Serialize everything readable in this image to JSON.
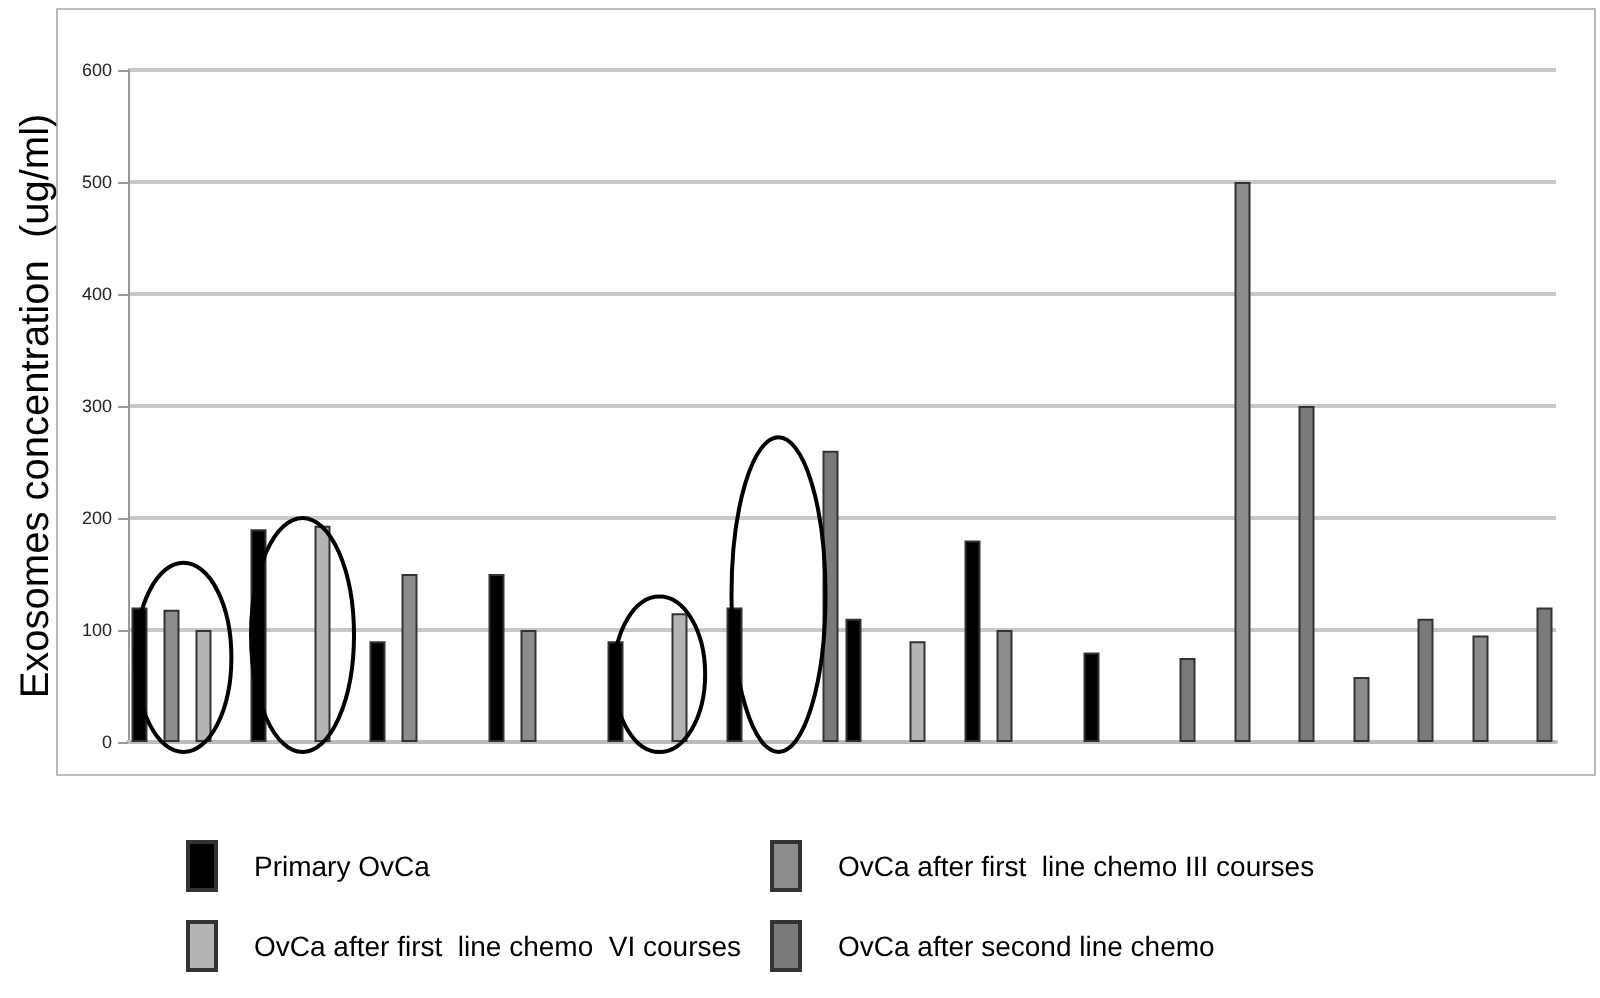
{
  "chart_data": {
    "type": "bar",
    "ylabel": "Exosomes concentration  (ug/ml)",
    "categories": [
      null,
      null,
      null,
      null,
      null,
      null,
      null,
      null,
      null,
      null,
      null,
      null
    ],
    "series": [
      {
        "name": "Primary OvCa",
        "color": "#000000",
        "values": [
          120,
          190,
          90,
          150,
          90,
          120,
          110,
          180,
          80,
          null,
          null,
          null
        ]
      },
      {
        "name": "OvCa after first  line chemo III courses",
        "color": "#8c8c8c",
        "values": [
          118,
          null,
          150,
          100,
          null,
          null,
          null,
          100,
          null,
          500,
          58,
          95
        ]
      },
      {
        "name": "OvCa after first  line chemo  VI courses",
        "color": "#b4b4b4",
        "values": [
          100,
          193,
          null,
          null,
          115,
          null,
          90,
          null,
          null,
          null,
          null,
          null
        ]
      },
      {
        "name": "OvCa after second line chemo",
        "color": "#7a7a7a",
        "values": [
          null,
          null,
          null,
          null,
          null,
          260,
          null,
          null,
          75,
          300,
          110,
          120
        ]
      }
    ],
    "ylim": [
      0,
      600
    ],
    "yticks": [
      0,
      100,
      200,
      300,
      400,
      500,
      600
    ],
    "grid": "y",
    "legend": "bottom"
  }
}
